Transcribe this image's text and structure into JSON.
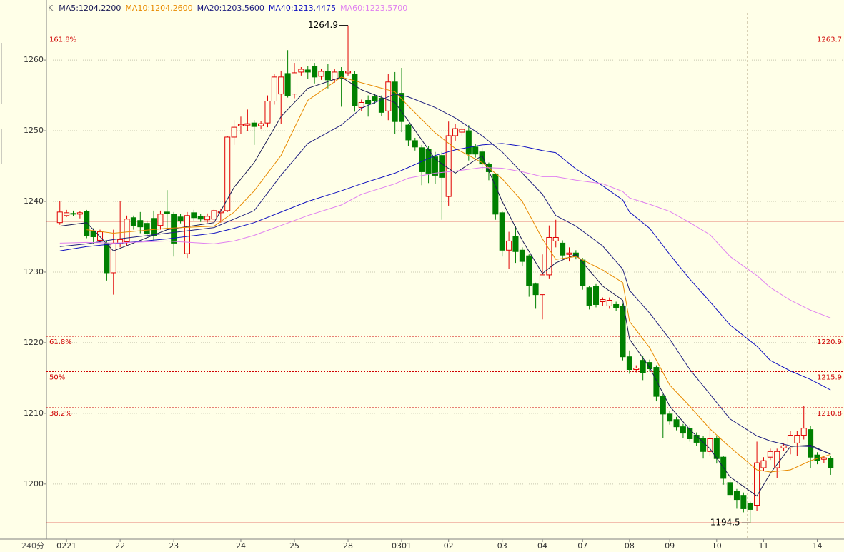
{
  "chart_data": {
    "type": "candlestick",
    "legend_prefix": "K",
    "period": "240分",
    "ylim": [
      1192.2,
      1268.5
    ],
    "yticks": [
      1200,
      1210,
      1220,
      1230,
      1240,
      1250,
      1260
    ],
    "xlim": [
      -2,
      117
    ],
    "grid": true,
    "xticks": [
      {
        "value": 1,
        "label": "0221"
      },
      {
        "value": 9,
        "label": "22"
      },
      {
        "value": 17,
        "label": "23"
      },
      {
        "value": 27,
        "label": "24"
      },
      {
        "value": 35,
        "label": "25"
      },
      {
        "value": 43,
        "label": "28"
      },
      {
        "value": 51,
        "label": "0301"
      },
      {
        "value": 58,
        "label": "02"
      },
      {
        "value": 66,
        "label": "03"
      },
      {
        "value": 72,
        "label": "04"
      },
      {
        "value": 78,
        "label": "07"
      },
      {
        "value": 85,
        "label": "08"
      },
      {
        "value": 91,
        "label": "09"
      },
      {
        "value": 98,
        "label": "10"
      },
      {
        "value": 105,
        "label": "11"
      },
      {
        "value": 113,
        "label": "14"
      }
    ],
    "up_color": "#e00000",
    "down_color": "#008000",
    "candles": [
      [
        1237,
        1240,
        1236.7,
        1238.5
      ],
      [
        1238,
        1238.8,
        1237.8,
        1238.4
      ],
      [
        1238.3,
        1238.7,
        1237.9,
        1238.2
      ],
      [
        1238.2,
        1238.6,
        1237.6,
        1238.4
      ],
      [
        1238.6,
        1238.8,
        1234.8,
        1235.1
      ],
      [
        1235.8,
        1236.2,
        1234,
        1235
      ],
      [
        1234.5,
        1236,
        1234.2,
        1235.7
      ],
      [
        1234.1,
        1234.5,
        1228.8,
        1229.9
      ],
      [
        1229.9,
        1236,
        1226.8,
        1234.1
      ],
      [
        1234,
        1240,
        1233.5,
        1234.6
      ],
      [
        1234.3,
        1238,
        1233.8,
        1237.5
      ],
      [
        1237.7,
        1238,
        1236,
        1236.6
      ],
      [
        1237.3,
        1238.5,
        1235.5,
        1236.4
      ],
      [
        1236.9,
        1237.3,
        1235,
        1235.4
      ],
      [
        1237.6,
        1238.7,
        1234.5,
        1235.2
      ],
      [
        1236.6,
        1238.7,
        1236,
        1238.2
      ],
      [
        1238.5,
        1241.6,
        1236,
        1238.3
      ],
      [
        1238.2,
        1238.5,
        1232.2,
        1234.1
      ],
      [
        1237.8,
        1238.2,
        1236.9,
        1237.3
      ],
      [
        1232.6,
        1238.5,
        1232,
        1238
      ],
      [
        1238.4,
        1238.8,
        1237.3,
        1237.7
      ],
      [
        1237.9,
        1238.2,
        1237.1,
        1237.5
      ],
      [
        1237.4,
        1238.3,
        1237,
        1237.9
      ],
      [
        1237.5,
        1239,
        1237,
        1238.7
      ],
      [
        1238.4,
        1239,
        1237,
        1238.6
      ],
      [
        1238.7,
        1249.3,
        1238.5,
        1249.1
      ],
      [
        1249.1,
        1251.5,
        1248,
        1250.5
      ],
      [
        1250.7,
        1252,
        1249.5,
        1250.9
      ],
      [
        1250.8,
        1253,
        1250,
        1251
      ],
      [
        1251.1,
        1251.5,
        1248,
        1250.6
      ],
      [
        1250.7,
        1251.4,
        1250.2,
        1251
      ],
      [
        1251.1,
        1255,
        1250.5,
        1254.2
      ],
      [
        1254.2,
        1258,
        1253.7,
        1257.6
      ],
      [
        1255.2,
        1258.5,
        1251,
        1257.6
      ],
      [
        1258.1,
        1261.4,
        1254.7,
        1255
      ],
      [
        1255.2,
        1259.6,
        1254.6,
        1258.2
      ],
      [
        1258.3,
        1259,
        1257.8,
        1258.7
      ],
      [
        1258.6,
        1259.2,
        1257.3,
        1258.3
      ],
      [
        1259.1,
        1259.6,
        1256.7,
        1257.6
      ],
      [
        1257.7,
        1258.8,
        1257.2,
        1258.4
      ],
      [
        1258.4,
        1259.5,
        1256,
        1257.2
      ],
      [
        1257.3,
        1258.7,
        1256.8,
        1258.3
      ],
      [
        1258.4,
        1259,
        1253.4,
        1257.4
      ],
      [
        1258.2,
        1264.9,
        1257.8,
        1258.4
      ],
      [
        1258,
        1258.4,
        1252.7,
        1253.5
      ],
      [
        1253.3,
        1254.4,
        1252.8,
        1254
      ],
      [
        1254.3,
        1255,
        1252,
        1253.8
      ],
      [
        1254.8,
        1255.2,
        1253.8,
        1254.3
      ],
      [
        1254.6,
        1255,
        1252.1,
        1252.6
      ],
      [
        1252.8,
        1258,
        1251.5,
        1256.9
      ],
      [
        1256.9,
        1258.3,
        1249.6,
        1251.3
      ],
      [
        1255.3,
        1258.9,
        1249.8,
        1251.3
      ],
      [
        1250.8,
        1251,
        1247.8,
        1248.7
      ],
      [
        1248.6,
        1249,
        1247.2,
        1247.7
      ],
      [
        1247.6,
        1248,
        1242.3,
        1244.2
      ],
      [
        1247.4,
        1247.8,
        1242.6,
        1244
      ],
      [
        1246.3,
        1247,
        1242.5,
        1243.7
      ],
      [
        1246.5,
        1247,
        1237.4,
        1243.4
      ],
      [
        1240.7,
        1251.3,
        1239.4,
        1249.3
      ],
      [
        1249.3,
        1251,
        1248.6,
        1250.3
      ],
      [
        1249.8,
        1250.6,
        1249.3,
        1250.2
      ],
      [
        1250,
        1250.8,
        1245.8,
        1246.7
      ],
      [
        1247.7,
        1248.1,
        1246.2,
        1246.7
      ],
      [
        1247,
        1247.6,
        1244.5,
        1245.3
      ],
      [
        1245.3,
        1245.5,
        1243,
        1244.2
      ],
      [
        1243.9,
        1244,
        1237.4,
        1238.2
      ],
      [
        1238.4,
        1238.6,
        1232.2,
        1233.1
      ],
      [
        1233.1,
        1235.7,
        1230.5,
        1234.4
      ],
      [
        1235.1,
        1236.5,
        1231.3,
        1232.9
      ],
      [
        1233.1,
        1233.5,
        1230.8,
        1231.5
      ],
      [
        1232.3,
        1232.5,
        1226.5,
        1228.1
      ],
      [
        1228.3,
        1228.5,
        1224.8,
        1226.8
      ],
      [
        1226.8,
        1232.5,
        1223.3,
        1229.6
      ],
      [
        1229.6,
        1236.6,
        1229,
        1234.9
      ],
      [
        1234.4,
        1237.4,
        1233.5,
        1234.9
      ],
      [
        1234.1,
        1234.5,
        1231.8,
        1232.4
      ],
      [
        1232.5,
        1233.5,
        1231.5,
        1232.7
      ],
      [
        1232.7,
        1233.1,
        1231.8,
        1232.2
      ],
      [
        1231.7,
        1232,
        1227.5,
        1228.1
      ],
      [
        1227.8,
        1228,
        1224.7,
        1225.3
      ],
      [
        1228,
        1228.3,
        1225,
        1225.4
      ],
      [
        1225.8,
        1226.4,
        1225.2,
        1226.1
      ],
      [
        1225.2,
        1226.4,
        1224.8,
        1226
      ],
      [
        1225.4,
        1225.8,
        1224.5,
        1224.9
      ],
      [
        1225.1,
        1225.5,
        1217.5,
        1218
      ],
      [
        1218,
        1218.9,
        1215.6,
        1216.2
      ],
      [
        1216.2,
        1216.8,
        1215.8,
        1216.4
      ],
      [
        1217.5,
        1218.1,
        1214.7,
        1215.7
      ],
      [
        1217.2,
        1217.6,
        1215.9,
        1216.3
      ],
      [
        1216.5,
        1216.8,
        1211.7,
        1212.4
      ],
      [
        1212.4,
        1212.7,
        1206.5,
        1209.9
      ],
      [
        1209.9,
        1210.3,
        1208.4,
        1208.9
      ],
      [
        1209.1,
        1209.5,
        1207.6,
        1208.1
      ],
      [
        1208.1,
        1208.5,
        1206.5,
        1207.2
      ],
      [
        1207.9,
        1208.3,
        1206,
        1206.4
      ],
      [
        1206.9,
        1207.3,
        1205.4,
        1205.9
      ],
      [
        1206.4,
        1206.8,
        1203.6,
        1204.6
      ],
      [
        1204.6,
        1208.7,
        1204,
        1206.4
      ],
      [
        1206.4,
        1206.8,
        1202.9,
        1203.6
      ],
      [
        1203.8,
        1204,
        1199.9,
        1200.8
      ],
      [
        1200.2,
        1200.6,
        1198,
        1198.5
      ],
      [
        1199,
        1199.3,
        1196.5,
        1197.8
      ],
      [
        1198.4,
        1198.8,
        1196,
        1196.5
      ],
      [
        1197.3,
        1197.5,
        1194.5,
        1196.4
      ],
      [
        1197,
        1206,
        1196.2,
        1203
      ],
      [
        1202.3,
        1203.8,
        1201.8,
        1203.3
      ],
      [
        1203.8,
        1205,
        1203.4,
        1204.6
      ],
      [
        1202.3,
        1205,
        1200.8,
        1204.6
      ],
      [
        1205.1,
        1205.8,
        1204.7,
        1205.4
      ],
      [
        1205.1,
        1207.5,
        1204.2,
        1206.9
      ],
      [
        1205.8,
        1207.5,
        1204,
        1206.9
      ],
      [
        1206.9,
        1211,
        1206.3,
        1207.9
      ],
      [
        1207.7,
        1208.2,
        1202.3,
        1203.8
      ],
      [
        1204.1,
        1204.5,
        1202.8,
        1203.3
      ],
      [
        1203.5,
        1204,
        1203,
        1203.7
      ],
      [
        1203.6,
        1204,
        1201.3,
        1202.3
      ]
    ],
    "high_candle": 43,
    "low_candle": 103,
    "series": [
      {
        "name": "MA5:1204.2200",
        "color": "#1a1a55",
        "x": [
          0,
          4,
          8,
          16,
          23,
          26,
          29,
          33,
          37,
          42,
          45,
          50,
          52,
          56,
          59,
          63,
          66,
          69,
          72,
          74,
          77,
          81,
          84,
          85,
          88,
          91,
          94,
          97,
          100,
          104,
          106,
          109,
          112,
          115
        ],
        "values": [
          1236.5,
          1237,
          1233,
          1236,
          1237,
          1242,
          1245.5,
          1252,
          1256,
          1257.6,
          1255.8,
          1254,
          1251.4,
          1246,
          1244,
          1246.5,
          1240,
          1234.5,
          1229.8,
          1231.3,
          1232.5,
          1228,
          1226,
          1220.5,
          1216.5,
          1211,
          1207.7,
          1205,
          1201,
          1198.3,
          1201.5,
          1205.3,
          1205.5,
          1204.2
        ]
      },
      {
        "name": "MA10:1204.2600",
        "color": "#e88a00",
        "x": [
          0,
          4,
          8,
          16,
          23,
          26,
          29,
          33,
          37,
          42,
          45,
          50,
          52,
          56,
          59,
          63,
          66,
          69,
          72,
          74,
          77,
          81,
          84,
          85,
          88,
          91,
          94,
          97,
          100,
          104,
          106,
          109,
          112,
          115
        ],
        "values": [
          null,
          1236,
          1235.5,
          1236.2,
          1236.5,
          1238.5,
          1241.5,
          1246.5,
          1254.3,
          1257.6,
          1256.8,
          1255.5,
          1253.5,
          1249.7,
          1247.5,
          1245.5,
          1243.2,
          1240,
          1234.7,
          1231.8,
          1232.2,
          1230.3,
          1228.5,
          1223,
          1219.3,
          1214,
          1211,
          1207.8,
          1205.2,
          1202,
          1201.7,
          1202,
          1203.3,
          1204.2
        ]
      },
      {
        "name": "MA20:1203.5600",
        "color": "#202080",
        "x": [
          0,
          4,
          8,
          16,
          23,
          26,
          29,
          33,
          37,
          42,
          45,
          50,
          52,
          56,
          59,
          63,
          66,
          69,
          72,
          74,
          77,
          81,
          84,
          85,
          88,
          91,
          94,
          97,
          100,
          104,
          106,
          109,
          112,
          115
        ],
        "values": [
          1233.6,
          1234,
          1234.6,
          1235.5,
          1236.3,
          1237.5,
          1238.7,
          1243.7,
          1248.2,
          1250.8,
          1253.2,
          1255.2,
          1254.8,
          1253.3,
          1251.8,
          1249.3,
          1247,
          1244,
          1241,
          1238,
          1236.5,
          1233.7,
          1230.4,
          1227.4,
          1224.2,
          1220.5,
          1216.2,
          1212.7,
          1209.2,
          1206.8,
          1206.1,
          1205.4,
          1205.3,
          1204.3
        ]
      },
      {
        "name": "MA40:1213.4475",
        "color": "#1010c0",
        "x": [
          0,
          4,
          8,
          16,
          23,
          26,
          29,
          33,
          37,
          42,
          45,
          50,
          52,
          56,
          59,
          63,
          66,
          69,
          72,
          74,
          77,
          81,
          84,
          85,
          88,
          91,
          94,
          97,
          100,
          104,
          106,
          109,
          112,
          115
        ],
        "values": [
          1233,
          1233.6,
          1234,
          1234.7,
          1235.5,
          1236.2,
          1237,
          1238.5,
          1240,
          1241.5,
          1242.5,
          1244,
          1244.8,
          1246.5,
          1247.3,
          1248,
          1248.2,
          1247.8,
          1247.2,
          1246.9,
          1244.6,
          1242.2,
          1240.2,
          1238.5,
          1236.2,
          1232.5,
          1229,
          1225.8,
          1222.5,
          1219.5,
          1217.5,
          1216,
          1214.8,
          1213.3
        ]
      },
      {
        "name": "MA60:1223.5700",
        "color": "#e080f0",
        "x": [
          0,
          4,
          8,
          16,
          23,
          26,
          29,
          33,
          37,
          42,
          45,
          50,
          52,
          56,
          59,
          63,
          66,
          69,
          72,
          74,
          77,
          81,
          84,
          85,
          88,
          91,
          94,
          97,
          100,
          104,
          106,
          109,
          112,
          115
        ],
        "values": [
          1234.1,
          1234.2,
          1234.1,
          1234.4,
          1234,
          1234.4,
          1235.2,
          1236.6,
          1238,
          1239.5,
          1241,
          1242.5,
          1243.3,
          1244,
          1244.3,
          1244.8,
          1244.7,
          1244.2,
          1243.5,
          1243.5,
          1243,
          1242.5,
          1241.4,
          1240.5,
          1239.6,
          1238.6,
          1237,
          1235.3,
          1232.2,
          1229.5,
          1227.8,
          1226,
          1224.6,
          1223.5
        ]
      }
    ],
    "fib_levels": [
      {
        "name": "161.8%",
        "level": 1263.7
      },
      {
        "name": "61.8%",
        "level": 1220.9
      },
      {
        "name": "50%",
        "level": 1215.9
      },
      {
        "name": "38.2%",
        "level": 1210.8
      }
    ],
    "hlines": [
      1237.2,
      1194.5
    ]
  }
}
